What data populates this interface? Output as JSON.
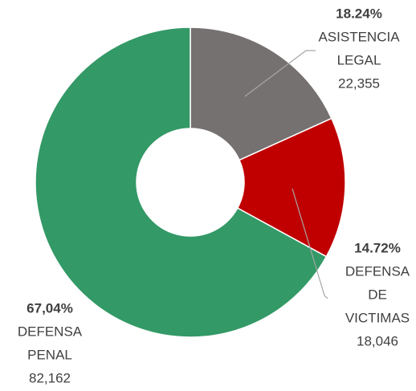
{
  "chart_data": {
    "type": "donut",
    "categories": [
      [
        "ASISTENCIA",
        "LEGAL"
      ],
      [
        "DEFENSA",
        "DE",
        "VICTIMAS"
      ],
      [
        "DEFENSA",
        "PENAL"
      ]
    ],
    "values": [
      22355,
      18046,
      82162
    ],
    "value_labels": [
      "22,355",
      "18,046",
      "82,162"
    ],
    "percent_labels": [
      "18.24%",
      "14.72%",
      "67,04%"
    ],
    "colors": [
      "#767171",
      "#c00000",
      "#339966"
    ]
  }
}
